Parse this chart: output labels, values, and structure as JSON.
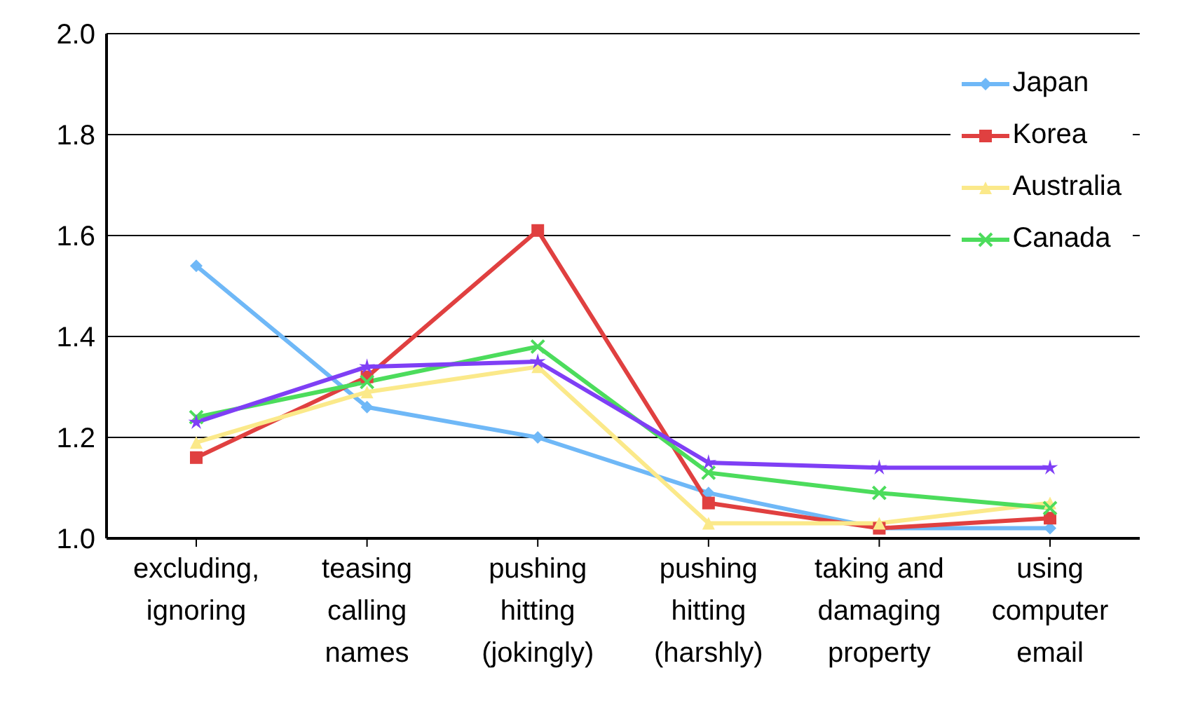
{
  "chart_data": {
    "type": "line",
    "categories": [
      "excluding, ignoring",
      "teasing calling names",
      "pushing hitting (jokingly)",
      "pushing hitting (harshly)",
      "taking and damaging property",
      "using computer email"
    ],
    "series": [
      {
        "name": "Japan",
        "color": "#6fb8f7",
        "marker": "diamond",
        "values": [
          1.54,
          1.26,
          1.2,
          1.09,
          1.02,
          1.02
        ]
      },
      {
        "name": "Korea",
        "color": "#e04040",
        "marker": "square",
        "values": [
          1.16,
          1.32,
          1.61,
          1.07,
          1.02,
          1.04
        ]
      },
      {
        "name": "Australia",
        "color": "#fbe98a",
        "marker": "triangle",
        "values": [
          1.19,
          1.29,
          1.34,
          1.03,
          1.03,
          1.07
        ]
      },
      {
        "name": "Canada",
        "color": "#4cdc5c",
        "marker": "cross",
        "values": [
          1.24,
          1.31,
          1.38,
          1.13,
          1.09,
          1.06
        ]
      },
      {
        "color": "#7f3ff5",
        "marker": "star",
        "values": [
          1.23,
          1.34,
          1.35,
          1.15,
          1.14,
          1.14
        ]
      }
    ],
    "ylim": [
      1.0,
      2.0
    ],
    "yticks": [
      {
        "value": 1.0,
        "label": "1.0"
      },
      {
        "value": 1.2,
        "label": "1.2"
      },
      {
        "value": 1.4,
        "label": "1.4"
      },
      {
        "value": 1.6,
        "label": "1.6"
      },
      {
        "value": 1.8,
        "label": "1.8"
      },
      {
        "value": 2.0,
        "label": "2.0"
      }
    ],
    "grid": "y",
    "legend": "top right"
  }
}
